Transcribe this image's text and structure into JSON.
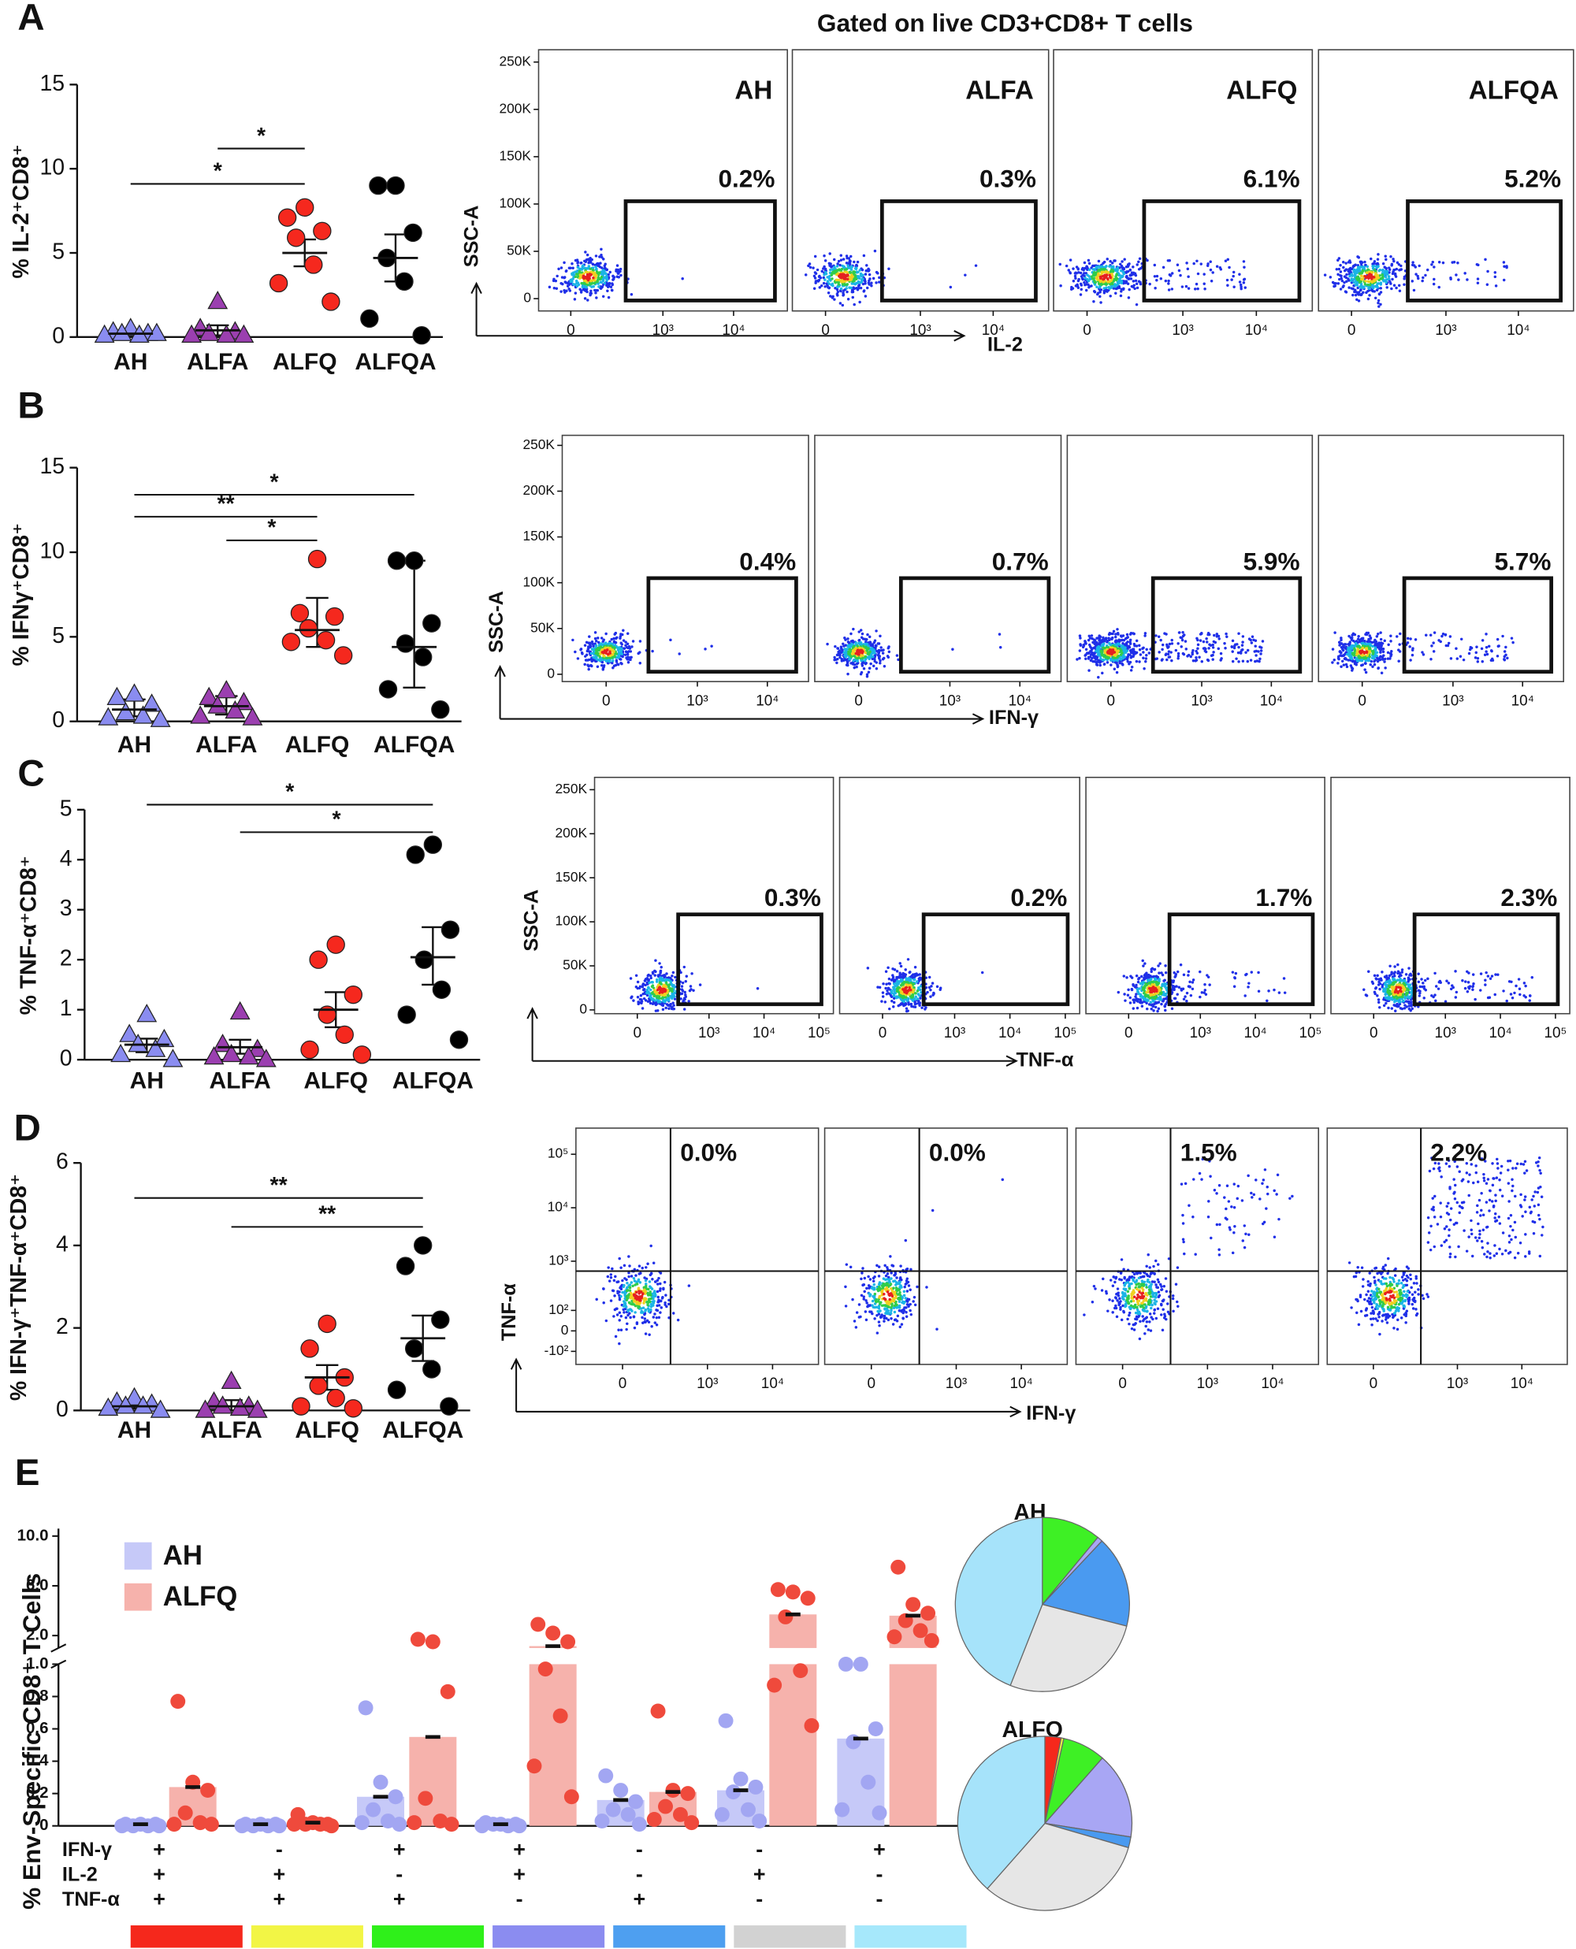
{
  "chart_data": [
    {
      "type": "dot",
      "panel": "A",
      "ylabel": "% IL-2⁺CD8⁺",
      "categories": [
        "AH",
        "ALFA",
        "ALFQ",
        "ALFQA"
      ],
      "ylim": [
        0,
        15
      ],
      "yticks": [
        0,
        5,
        10,
        15
      ],
      "values": [
        [
          0.5,
          0.3,
          0.2,
          0.2,
          0.1,
          0.1,
          0.2
        ],
        [
          2.1,
          0.5,
          0.3,
          0.2,
          0.1,
          0.1,
          0.1
        ],
        [
          7.7,
          7.1,
          6.3,
          5.9,
          4.3,
          3.2,
          2.1
        ],
        [
          9.0,
          9.0,
          6.2,
          4.7,
          3.3,
          1.1,
          0.1
        ]
      ],
      "means": [
        0.2,
        0.4,
        5.0,
        4.7
      ],
      "lower": [
        0.1,
        0.1,
        4.2,
        3.3
      ],
      "upper": [
        0.3,
        0.7,
        5.8,
        6.1
      ],
      "colors": [
        "#8a8cf0",
        "#9b3fb0",
        "#f5281e",
        "#000000"
      ],
      "markers": [
        "triangle",
        "triangle",
        "circle",
        "circle"
      ],
      "brackets": [
        {
          "from": 0,
          "to": 2,
          "y": 9.1,
          "label": "*"
        },
        {
          "from": 1,
          "to": 2,
          "y": 11.2,
          "label": "*"
        }
      ]
    },
    {
      "type": "flow",
      "title": "Gated on live CD3+CD8+ T cells",
      "titles": [
        "AH",
        "ALFA",
        "ALFQ",
        "ALFQA"
      ],
      "xlabel": "IL-2",
      "ylabel": "SSC-A",
      "xscale": "biexponential",
      "yscale": "linear",
      "xlim": [
        -125,
        57600
      ],
      "ylim": [
        -13000,
        263000
      ],
      "xticks": [
        0,
        {
          "value": 1000,
          "label": "10³"
        },
        {
          "value": 10000,
          "label": "10⁴"
        }
      ],
      "yticks": [
        {
          "value": 250000,
          "label": "250K"
        },
        {
          "value": 200000,
          "label": "200K"
        },
        {
          "value": 150000,
          "label": "150K"
        },
        {
          "value": 100000,
          "label": "100K"
        },
        {
          "value": 50000,
          "label": "50K"
        },
        0
      ],
      "gate": "rect",
      "gate_labels": [
        "0.2%",
        "0.3%",
        "6.1%",
        "5.2%"
      ]
    },
    {
      "type": "dot",
      "panel": "B",
      "ylabel": "% IFNγ⁺CD8⁺",
      "categories": [
        "AH",
        "ALFA",
        "ALFQ",
        "ALFQA"
      ],
      "ylim": [
        0,
        15
      ],
      "yticks": [
        0,
        5,
        10,
        15
      ],
      "values": [
        [
          1.6,
          1.4,
          1.0,
          0.5,
          0.3,
          0.2,
          0.1
        ],
        [
          1.8,
          1.4,
          1.1,
          0.9,
          0.6,
          0.3,
          0.2
        ],
        [
          9.6,
          6.4,
          6.2,
          5.5,
          4.8,
          4.7,
          3.9
        ],
        [
          9.5,
          9.5,
          5.8,
          4.6,
          3.8,
          1.9,
          0.7
        ]
      ],
      "means": [
        0.7,
        0.9,
        5.4,
        4.4
      ],
      "lower": [
        0.3,
        0.4,
        4.4,
        2.0
      ],
      "upper": [
        1.3,
        1.5,
        7.3,
        9.5
      ],
      "colors": [
        "#8a8cf0",
        "#9b3fb0",
        "#f5281e",
        "#000000"
      ],
      "markers": [
        "triangle",
        "triangle",
        "circle",
        "circle"
      ],
      "brackets": [
        {
          "from": 0,
          "to": 3,
          "y": 13.4,
          "label": "*"
        },
        {
          "from": 0,
          "to": 2,
          "y": 12.1,
          "label": "**"
        },
        {
          "from": 1,
          "to": 2,
          "y": 10.7,
          "label": "*"
        }
      ]
    },
    {
      "type": "flow",
      "xlabel": "IFN-γ",
      "ylabel": "SSC-A",
      "xscale": "biexponential",
      "yscale": "linear",
      "xlim": [
        -200,
        38700
      ],
      "ylim": [
        -8000,
        261000
      ],
      "xticks": [
        0,
        {
          "value": 1000,
          "label": "10³"
        },
        {
          "value": 10000,
          "label": "10⁴"
        }
      ],
      "yticks": [
        {
          "value": 250000,
          "label": "250K"
        },
        {
          "value": 200000,
          "label": "200K"
        },
        {
          "value": 150000,
          "label": "150K"
        },
        {
          "value": 100000,
          "label": "100K"
        },
        {
          "value": 50000,
          "label": "50K"
        },
        0
      ],
      "gate": "rect",
      "gate_labels": [
        "0.4%",
        "0.7%",
        "5.9%",
        "5.7%"
      ]
    },
    {
      "type": "dot",
      "panel": "C",
      "ylabel": "% TNF-α⁺CD8⁺",
      "categories": [
        "AH",
        "ALFA",
        "ALFQ",
        "ALFQA"
      ],
      "ylim": [
        0,
        5
      ],
      "yticks": [
        0,
        1,
        2,
        3,
        4,
        5
      ],
      "values": [
        [
          0.9,
          0.5,
          0.4,
          0.3,
          0.2,
          0.1,
          0.0
        ],
        [
          0.95,
          0.3,
          0.2,
          0.1,
          0.05,
          0.05,
          0.0
        ],
        [
          2.3,
          2.0,
          1.3,
          0.9,
          0.5,
          0.2,
          0.1
        ],
        [
          4.3,
          4.1,
          2.6,
          2.0,
          1.4,
          0.9,
          0.4
        ]
      ],
      "means": [
        0.3,
        0.25,
        1.0,
        2.05
      ],
      "lower": [
        0.15,
        0.12,
        0.65,
        1.5
      ],
      "upper": [
        0.42,
        0.4,
        1.35,
        2.65
      ],
      "colors": [
        "#8a8cf0",
        "#9b3fb0",
        "#f5281e",
        "#000000"
      ],
      "markers": [
        "triangle",
        "triangle",
        "circle",
        "circle"
      ],
      "brackets": [
        {
          "from": 0,
          "to": 3,
          "y": 5.1,
          "label": "*"
        },
        {
          "from": 1,
          "to": 3,
          "y": 4.55,
          "label": "*"
        }
      ]
    },
    {
      "type": "flow",
      "xlabel": "TNF-α",
      "ylabel": "SSC-A",
      "xscale": "biexponential",
      "yscale": "linear",
      "xlim": [
        -290,
        182000
      ],
      "ylim": [
        -4300,
        264000
      ],
      "xticks": [
        0,
        {
          "value": 1000,
          "label": "10³"
        },
        {
          "value": 10000,
          "label": "10⁴"
        },
        {
          "value": 100000,
          "label": "10⁵"
        }
      ],
      "yticks": [
        {
          "value": 250000,
          "label": "250K"
        },
        {
          "value": 200000,
          "label": "200K"
        },
        {
          "value": 150000,
          "label": "150K"
        },
        {
          "value": 100000,
          "label": "100K"
        },
        {
          "value": 50000,
          "label": "50K"
        },
        0
      ],
      "gate": "rect",
      "gate_labels": [
        "0.3%",
        "0.2%",
        "1.7%",
        "2.3%"
      ]
    },
    {
      "type": "dot",
      "panel": "D",
      "ylabel": "% IFN-γ⁺TNF-α⁺CD8⁺",
      "categories": [
        "AH",
        "ALFA",
        "ALFQ",
        "ALFQA"
      ],
      "ylim": [
        0,
        6
      ],
      "yticks": [
        0,
        2,
        4,
        6
      ],
      "values": [
        [
          0.3,
          0.2,
          0.15,
          0.1,
          0.1,
          0.05,
          0.0
        ],
        [
          0.7,
          0.2,
          0.1,
          0.1,
          0.05,
          0.0,
          0.0
        ],
        [
          2.1,
          1.5,
          0.8,
          0.6,
          0.3,
          0.1,
          0.05
        ],
        [
          4.0,
          3.5,
          2.2,
          1.5,
          1.0,
          0.5,
          0.1
        ]
      ],
      "means": [
        0.1,
        0.1,
        0.8,
        1.75
      ],
      "lower": [
        0.05,
        0.0,
        0.5,
        1.2
      ],
      "upper": [
        0.2,
        0.25,
        1.1,
        2.3
      ],
      "colors": [
        "#8a8cf0",
        "#9b3fb0",
        "#f5281e",
        "#000000"
      ],
      "markers": [
        "triangle",
        "triangle",
        "circle",
        "circle"
      ],
      "brackets": [
        {
          "from": 0,
          "to": 3,
          "y": 5.15,
          "label": "**"
        },
        {
          "from": 1,
          "to": 3,
          "y": 4.45,
          "label": "**"
        }
      ]
    },
    {
      "type": "flow",
      "xlabel": "IFN-γ",
      "ylabel": "TNF-α",
      "xscale": "biexponential",
      "yscale": "biexponential",
      "xlim": [
        -250,
        50600
      ],
      "ylim": [
        -200,
        308000
      ],
      "xticks": [
        0,
        {
          "value": 1000,
          "label": "10³"
        },
        {
          "value": 10000,
          "label": "10⁴"
        }
      ],
      "yticks": [
        {
          "value": 100000,
          "label": "10⁵"
        },
        {
          "value": 10000,
          "label": "10⁴"
        },
        {
          "value": 1000,
          "label": "10³"
        },
        {
          "value": 100,
          "label": "10²"
        },
        0,
        {
          "value": -100,
          "label": "-10²"
        }
      ],
      "gate": "quadrant",
      "gate_labels": [
        "0.0%",
        "0.0%",
        "1.5%",
        "2.2%"
      ]
    },
    {
      "type": "bar",
      "panel": "E",
      "ylabel": "% Env-Specific CD8⁺ T Cells",
      "ylim": [
        0,
        10
      ],
      "ybreak": 1,
      "yticks": [
        0,
        0.2,
        0.4,
        0.6,
        0.8,
        {
          "value": 1,
          "label": "1.0"
        },
        {
          "value": 2,
          "label": "2.0"
        },
        {
          "value": 6,
          "label": "6.0"
        },
        {
          "value": 10,
          "label": "10.0"
        }
      ],
      "series": [
        {
          "name": "AH",
          "color": "#c6c9f8",
          "point_color": "#a2a6f2",
          "values": [
            0.01,
            0.01,
            0.18,
            0.01,
            0.16,
            0.22,
            0.54
          ],
          "points": [
            [
              0.01,
              0.01,
              0.01,
              0.0,
              0.0,
              0.0,
              0.0
            ],
            [
              0.01,
              0.01,
              0.01,
              0.0,
              0.0,
              0.0,
              0.0
            ],
            [
              0.73,
              0.27,
              0.18,
              0.1,
              0.03,
              0.02,
              0.01
            ],
            [
              0.02,
              0.01,
              0.01,
              0.01,
              0.0,
              0.0,
              0.0
            ],
            [
              0.31,
              0.22,
              0.15,
              0.1,
              0.07,
              0.03,
              0.01
            ],
            [
              0.65,
              0.29,
              0.24,
              0.21,
              0.1,
              0.07,
              0.03
            ],
            [
              1.0,
              1.0,
              0.6,
              0.52,
              0.27,
              0.1,
              0.08
            ]
          ]
        },
        {
          "name": "ALFQ",
          "color": "#f6b2ac",
          "point_color": "#ef4a3c",
          "values": [
            0.24,
            0.02,
            0.55,
            1.15,
            0.21,
            3.7,
            3.6
          ],
          "points": [
            [
              0.77,
              0.27,
              0.22,
              0.08,
              0.02,
              0.01,
              0.01
            ],
            [
              0.07,
              0.02,
              0.01,
              0.01,
              0.01,
              0.01,
              0.0
            ],
            [
              1.7,
              1.5,
              0.83,
              0.17,
              0.03,
              0.02,
              0.01
            ],
            [
              2.9,
              2.2,
              1.5,
              0.97,
              0.68,
              0.37,
              0.18
            ],
            [
              0.71,
              0.22,
              0.2,
              0.12,
              0.07,
              0.04,
              0.02
            ],
            [
              5.7,
              5.5,
              5.0,
              3.5,
              0.96,
              0.87,
              0.62
            ],
            [
              7.5,
              4.5,
              3.8,
              3.2,
              2.4,
              1.9,
              1.6
            ]
          ]
        }
      ],
      "rows": [
        {
          "label": "IFN-γ",
          "signs": [
            "+",
            "-",
            "+",
            "+",
            "-",
            "-",
            "+"
          ]
        },
        {
          "label": "IL-2",
          "signs": [
            "+",
            "+",
            "-",
            "+",
            "-",
            "+",
            "-"
          ]
        },
        {
          "label": "TNF-α",
          "signs": [
            "+",
            "+",
            "+",
            "-",
            "+",
            "-",
            "-"
          ]
        }
      ],
      "category_colors": [
        "#f5281c",
        "#f2f545",
        "#2ff01a",
        "#8b8cf0",
        "#4e9ff0",
        "#d2d2d2",
        "#a6e8fb"
      ]
    },
    {
      "type": "pie",
      "title": "AH",
      "values": [
        0,
        0,
        11,
        1,
        17,
        27,
        44
      ],
      "colors": [
        "#f5281c",
        "#f2f545",
        "#3ef025",
        "#a8a6f4",
        "#4a9af0",
        "#e6e6e6",
        "#a6e3fa"
      ]
    },
    {
      "type": "pie",
      "title": "ALFQ",
      "values": [
        3,
        0.5,
        8,
        16,
        2,
        32,
        38.5
      ],
      "colors": [
        "#f5281c",
        "#f2f545",
        "#3ef025",
        "#a8a6f4",
        "#4a9af0",
        "#e6e6e6",
        "#a6e3fa"
      ]
    }
  ]
}
